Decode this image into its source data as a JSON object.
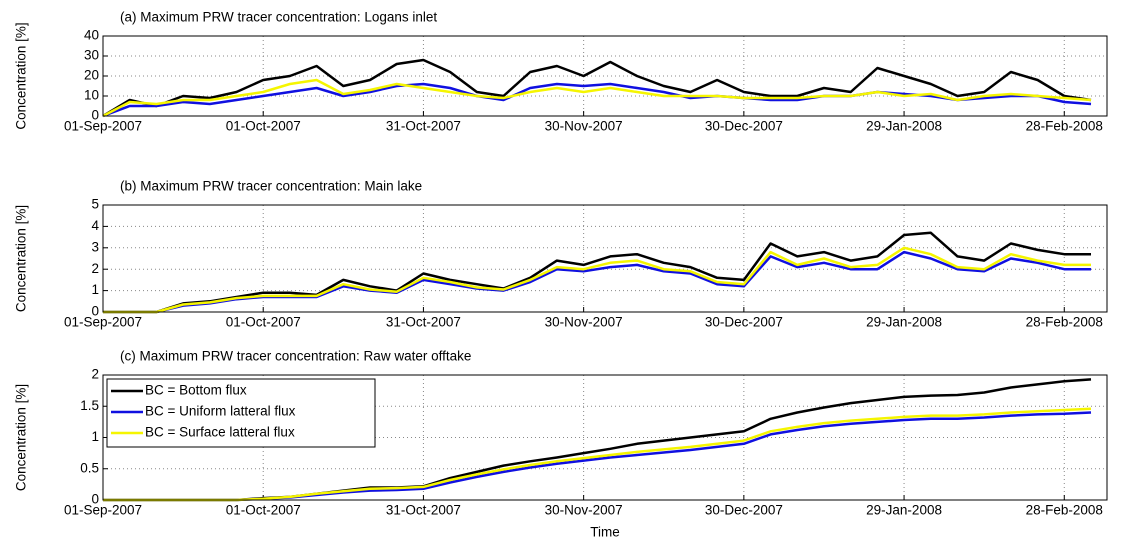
{
  "chart_data": [
    {
      "type": "line",
      "title": "(a) Maximum PRW tracer concentration: Logans inlet",
      "ylabel": "Concentration [%]",
      "x": [
        "01-Sep-2007",
        "06-Sep-2007",
        "11-Sep-2007",
        "16-Sep-2007",
        "21-Sep-2007",
        "26-Sep-2007",
        "01-Oct-2007",
        "06-Oct-2007",
        "11-Oct-2007",
        "16-Oct-2007",
        "21-Oct-2007",
        "26-Oct-2007",
        "31-Oct-2007",
        "05-Nov-2007",
        "10-Nov-2007",
        "15-Nov-2007",
        "20-Nov-2007",
        "25-Nov-2007",
        "30-Nov-2007",
        "05-Dec-2007",
        "10-Dec-2007",
        "15-Dec-2007",
        "20-Dec-2007",
        "25-Dec-2007",
        "30-Dec-2007",
        "04-Jan-2008",
        "09-Jan-2008",
        "14-Jan-2008",
        "19-Jan-2008",
        "24-Jan-2008",
        "29-Jan-2008",
        "03-Feb-2008",
        "08-Feb-2008",
        "13-Feb-2008",
        "18-Feb-2008",
        "23-Feb-2008",
        "28-Feb-2008",
        "04-Mar-2008"
      ],
      "series": [
        {
          "color": "#000000",
          "values": [
            0,
            8,
            5,
            10,
            9,
            12,
            18,
            20,
            25,
            15,
            18,
            26,
            28,
            22,
            12,
            10,
            22,
            25,
            20,
            27,
            20,
            15,
            12,
            18,
            12,
            10,
            10,
            14,
            12,
            24,
            20,
            16,
            10,
            12,
            22,
            18,
            10,
            8
          ]
        },
        {
          "color": "#1010e0",
          "values": [
            0,
            5,
            5,
            7,
            6,
            8,
            10,
            12,
            14,
            10,
            12,
            15,
            16,
            14,
            10,
            8,
            14,
            16,
            15,
            16,
            14,
            12,
            9,
            10,
            9,
            8,
            8,
            10,
            10,
            12,
            11,
            10,
            8,
            9,
            10,
            10,
            7,
            6
          ]
        },
        {
          "color": "#f5f500",
          "values": [
            0,
            7,
            6,
            8,
            8,
            10,
            12,
            16,
            18,
            11,
            13,
            16,
            14,
            12,
            10,
            9,
            12,
            14,
            12,
            14,
            12,
            10,
            10,
            10,
            9,
            9,
            9,
            10,
            10,
            12,
            10,
            11,
            8,
            10,
            11,
            10,
            9,
            8
          ]
        }
      ],
      "xlim": [
        "01-Sep-2007",
        "07-Mar-2008"
      ],
      "xticks": [
        "01-Sep-2007",
        "01-Oct-2007",
        "31-Oct-2007",
        "30-Nov-2007",
        "30-Dec-2007",
        "29-Jan-2008",
        "28-Feb-2008"
      ],
      "ylim": [
        0,
        40
      ],
      "yticks": [
        0,
        10,
        20,
        30,
        40
      ],
      "grid": true
    },
    {
      "type": "line",
      "title": "(b) Maximum PRW tracer concentration: Main lake",
      "ylabel": "Concentration [%]",
      "x": [
        "01-Sep-2007",
        "06-Sep-2007",
        "11-Sep-2007",
        "16-Sep-2007",
        "21-Sep-2007",
        "26-Sep-2007",
        "01-Oct-2007",
        "06-Oct-2007",
        "11-Oct-2007",
        "16-Oct-2007",
        "21-Oct-2007",
        "26-Oct-2007",
        "31-Oct-2007",
        "05-Nov-2007",
        "10-Nov-2007",
        "15-Nov-2007",
        "20-Nov-2007",
        "25-Nov-2007",
        "30-Nov-2007",
        "05-Dec-2007",
        "10-Dec-2007",
        "15-Dec-2007",
        "20-Dec-2007",
        "25-Dec-2007",
        "30-Dec-2007",
        "04-Jan-2008",
        "09-Jan-2008",
        "14-Jan-2008",
        "19-Jan-2008",
        "24-Jan-2008",
        "29-Jan-2008",
        "03-Feb-2008",
        "08-Feb-2008",
        "13-Feb-2008",
        "18-Feb-2008",
        "23-Feb-2008",
        "28-Feb-2008",
        "04-Mar-2008"
      ],
      "series": [
        {
          "color": "#000000",
          "values": [
            0,
            0,
            0,
            0.4,
            0.5,
            0.7,
            0.9,
            0.9,
            0.8,
            1.5,
            1.2,
            1.0,
            1.8,
            1.5,
            1.3,
            1.1,
            1.6,
            2.4,
            2.2,
            2.6,
            2.7,
            2.3,
            2.1,
            1.6,
            1.5,
            3.2,
            2.6,
            2.8,
            2.4,
            2.6,
            3.6,
            3.7,
            2.6,
            2.4,
            3.2,
            2.9,
            2.7,
            2.7
          ]
        },
        {
          "color": "#1010e0",
          "values": [
            0,
            0,
            0,
            0.3,
            0.4,
            0.6,
            0.7,
            0.7,
            0.7,
            1.2,
            1.0,
            0.9,
            1.5,
            1.3,
            1.1,
            1.0,
            1.4,
            2.0,
            1.9,
            2.1,
            2.2,
            1.9,
            1.8,
            1.3,
            1.2,
            2.6,
            2.1,
            2.3,
            2.0,
            2.0,
            2.8,
            2.5,
            2.0,
            1.9,
            2.5,
            2.3,
            2.0,
            2.0
          ]
        },
        {
          "color": "#f5f500",
          "values": [
            0,
            0,
            0,
            0.35,
            0.45,
            0.65,
            0.75,
            0.75,
            0.75,
            1.3,
            1.05,
            0.95,
            1.6,
            1.4,
            1.15,
            1.05,
            1.5,
            2.1,
            2.0,
            2.3,
            2.4,
            2.0,
            1.9,
            1.4,
            1.3,
            2.8,
            2.2,
            2.5,
            2.1,
            2.2,
            3.0,
            2.7,
            2.1,
            2.0,
            2.7,
            2.4,
            2.2,
            2.2
          ]
        }
      ],
      "xlim": [
        "01-Sep-2007",
        "07-Mar-2008"
      ],
      "xticks": [
        "01-Sep-2007",
        "01-Oct-2007",
        "31-Oct-2007",
        "30-Nov-2007",
        "30-Dec-2007",
        "29-Jan-2008",
        "28-Feb-2008"
      ],
      "ylim": [
        0,
        5
      ],
      "yticks": [
        0,
        1,
        2,
        3,
        4,
        5
      ],
      "grid": true
    },
    {
      "type": "line",
      "title": "(c) Maximum PRW tracer concentration: Raw water offtake",
      "ylabel": "Concentration [%]",
      "xlabel": "Time",
      "legend": "upper left",
      "x": [
        "01-Sep-2007",
        "06-Sep-2007",
        "11-Sep-2007",
        "16-Sep-2007",
        "21-Sep-2007",
        "26-Sep-2007",
        "01-Oct-2007",
        "06-Oct-2007",
        "11-Oct-2007",
        "16-Oct-2007",
        "21-Oct-2007",
        "26-Oct-2007",
        "31-Oct-2007",
        "05-Nov-2007",
        "10-Nov-2007",
        "15-Nov-2007",
        "20-Nov-2007",
        "25-Nov-2007",
        "30-Nov-2007",
        "05-Dec-2007",
        "10-Dec-2007",
        "15-Dec-2007",
        "20-Dec-2007",
        "25-Dec-2007",
        "30-Dec-2007",
        "04-Jan-2008",
        "09-Jan-2008",
        "14-Jan-2008",
        "19-Jan-2008",
        "24-Jan-2008",
        "29-Jan-2008",
        "03-Feb-2008",
        "08-Feb-2008",
        "13-Feb-2008",
        "18-Feb-2008",
        "23-Feb-2008",
        "28-Feb-2008",
        "04-Mar-2008"
      ],
      "series": [
        {
          "name": "BC = Bottom flux",
          "color": "#000000",
          "values": [
            0,
            0,
            0,
            0,
            0,
            0,
            0.03,
            0.05,
            0.1,
            0.15,
            0.2,
            0.2,
            0.22,
            0.35,
            0.45,
            0.55,
            0.62,
            0.68,
            0.75,
            0.82,
            0.9,
            0.95,
            1.0,
            1.05,
            1.1,
            1.3,
            1.4,
            1.48,
            1.55,
            1.6,
            1.65,
            1.67,
            1.68,
            1.72,
            1.8,
            1.85,
            1.9,
            1.93
          ]
        },
        {
          "name": "BC = Uniform latteral flux",
          "color": "#1010e0",
          "values": [
            0,
            0,
            0,
            0,
            0,
            0,
            0.02,
            0.04,
            0.08,
            0.12,
            0.15,
            0.16,
            0.18,
            0.28,
            0.37,
            0.45,
            0.52,
            0.58,
            0.63,
            0.68,
            0.72,
            0.76,
            0.8,
            0.85,
            0.9,
            1.05,
            1.12,
            1.18,
            1.22,
            1.25,
            1.28,
            1.3,
            1.3,
            1.32,
            1.35,
            1.37,
            1.38,
            1.4
          ]
        },
        {
          "name": "BC = Surface latteral flux",
          "color": "#f5f500",
          "values": [
            0,
            0,
            0,
            0,
            0,
            0,
            0.02,
            0.05,
            0.1,
            0.14,
            0.18,
            0.19,
            0.21,
            0.32,
            0.41,
            0.49,
            0.56,
            0.62,
            0.67,
            0.72,
            0.77,
            0.81,
            0.85,
            0.9,
            0.95,
            1.1,
            1.17,
            1.23,
            1.27,
            1.3,
            1.33,
            1.35,
            1.35,
            1.37,
            1.4,
            1.42,
            1.44,
            1.46
          ]
        }
      ],
      "xlim": [
        "01-Sep-2007",
        "07-Mar-2008"
      ],
      "xticks": [
        "01-Sep-2007",
        "01-Oct-2007",
        "31-Oct-2007",
        "30-Nov-2007",
        "30-Dec-2007",
        "29-Jan-2008",
        "28-Feb-2008"
      ],
      "ylim": [
        0,
        2
      ],
      "yticks": [
        0,
        0.5,
        1,
        1.5,
        2
      ],
      "grid": true
    }
  ]
}
